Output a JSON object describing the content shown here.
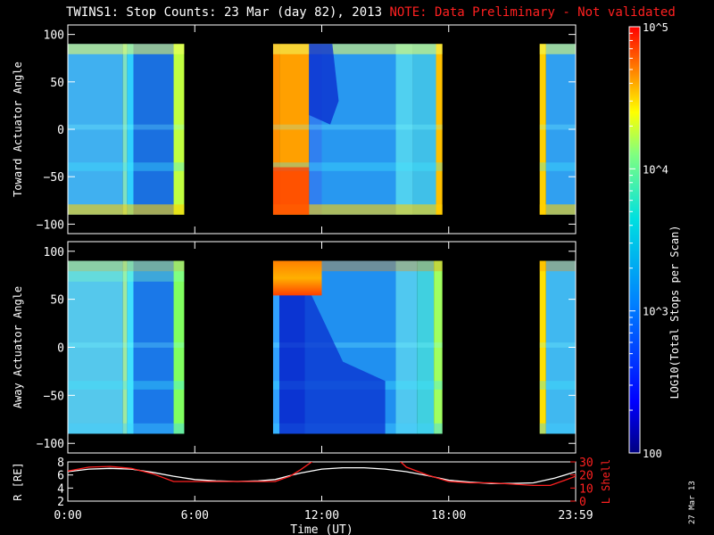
{
  "title": {
    "main": "TWINS1: Stop Counts: 23 Mar (day  82), 2013",
    "note": "NOTE: Data Preliminary - Not validated"
  },
  "colors": {
    "background": "#000000",
    "note": "#ff2020",
    "r_line": "#ffffff",
    "lshell_line": "#ff2020"
  },
  "colorbar": {
    "label": "LOG10(Total Stops per Scan)",
    "ticks": [
      {
        "value": 100,
        "label": "100"
      },
      {
        "value": 1000,
        "label": "10^3"
      },
      {
        "value": 10000,
        "label": "10^4"
      },
      {
        "value": 100000,
        "label": "10^5"
      }
    ],
    "range": [
      100,
      100000
    ],
    "scale": "log"
  },
  "stamp": "27 Mar 13",
  "chart_data": [
    {
      "type": "heatmap",
      "ylabel": "Toward Actuator Angle",
      "xlim": [
        0,
        24
      ],
      "ylim": [
        -110,
        110
      ],
      "yticks": [
        100,
        50,
        0,
        -50,
        -100
      ],
      "data_angle_range": [
        -90,
        90
      ],
      "data_intervals_hours": [
        [
          0,
          5.5
        ],
        [
          9.7,
          17.7
        ],
        [
          22.3,
          24
        ]
      ],
      "description_bands": [
        {
          "from": 0,
          "to": 2.8,
          "level": "cyan-blue"
        },
        {
          "from": 2.8,
          "to": 3.3,
          "level": "cyan"
        },
        {
          "from": 3.3,
          "to": 5.0,
          "level": "blue"
        },
        {
          "from": 5.0,
          "to": 5.5,
          "level": "yellow-green"
        },
        {
          "from": 9.7,
          "to": 11.5,
          "level": "red-orange"
        },
        {
          "from": 11.5,
          "to": 15.5,
          "level": "blue-cyan"
        },
        {
          "from": 15.5,
          "to": 17.7,
          "level": "cyan"
        },
        {
          "from": 22.3,
          "to": 22.6,
          "level": "yellow"
        },
        {
          "from": 22.6,
          "to": 24,
          "level": "cyan-blue"
        }
      ]
    },
    {
      "type": "heatmap",
      "ylabel": "Away Actuator Angle",
      "xlim": [
        0,
        24
      ],
      "ylim": [
        -110,
        110
      ],
      "yticks": [
        100,
        50,
        0,
        -50,
        -100
      ],
      "data_angle_range": [
        -90,
        90
      ],
      "data_intervals_hours": [
        [
          0,
          5.5
        ],
        [
          9.7,
          17.7
        ],
        [
          22.3,
          24
        ]
      ]
    },
    {
      "type": "line",
      "xlabel": "Time (UT)",
      "ylabel": "R [RE]",
      "y2label": "L Shell",
      "xlim": [
        0,
        24
      ],
      "xticks": [
        {
          "value": 0,
          "label": "0:00"
        },
        {
          "value": 6,
          "label": "6:00"
        },
        {
          "value": 12,
          "label": "12:00"
        },
        {
          "value": 18,
          "label": "18:00"
        },
        {
          "value": 24,
          "label": "23:59"
        }
      ],
      "ylim": [
        2,
        8
      ],
      "yticks": [
        2,
        4,
        6,
        8
      ],
      "y2lim": [
        0,
        30
      ],
      "y2ticks": [
        0,
        10,
        20,
        30
      ],
      "series": [
        {
          "axis": "left",
          "x": [
            0,
            1,
            2,
            3,
            4,
            5,
            6,
            7,
            8,
            9,
            9.8,
            10.5,
            11,
            12,
            13,
            14,
            15,
            16,
            17,
            18,
            19,
            20,
            21,
            22,
            23,
            24
          ],
          "y": [
            6.5,
            6.9,
            7.0,
            6.9,
            6.4,
            5.8,
            5.3,
            5.1,
            5.0,
            5.1,
            5.3,
            5.9,
            6.3,
            6.9,
            7.1,
            7.1,
            6.9,
            6.5,
            5.9,
            5.2,
            4.9,
            4.7,
            4.7,
            4.8,
            5.5,
            6.5
          ]
        },
        {
          "axis": "right",
          "x": [
            0,
            1,
            2,
            3,
            4,
            5,
            6,
            7,
            8,
            9,
            9.8,
            10.5,
            11,
            11.7,
            15.6,
            16,
            17,
            18,
            19,
            20,
            21,
            22,
            22.8,
            23.5,
            24
          ],
          "y": [
            23,
            26,
            26.5,
            25,
            21,
            15,
            15,
            15,
            15,
            15,
            15,
            19,
            24,
            32,
            32,
            26,
            20,
            15,
            14,
            14,
            13,
            12,
            12,
            16,
            19
          ]
        }
      ]
    }
  ]
}
